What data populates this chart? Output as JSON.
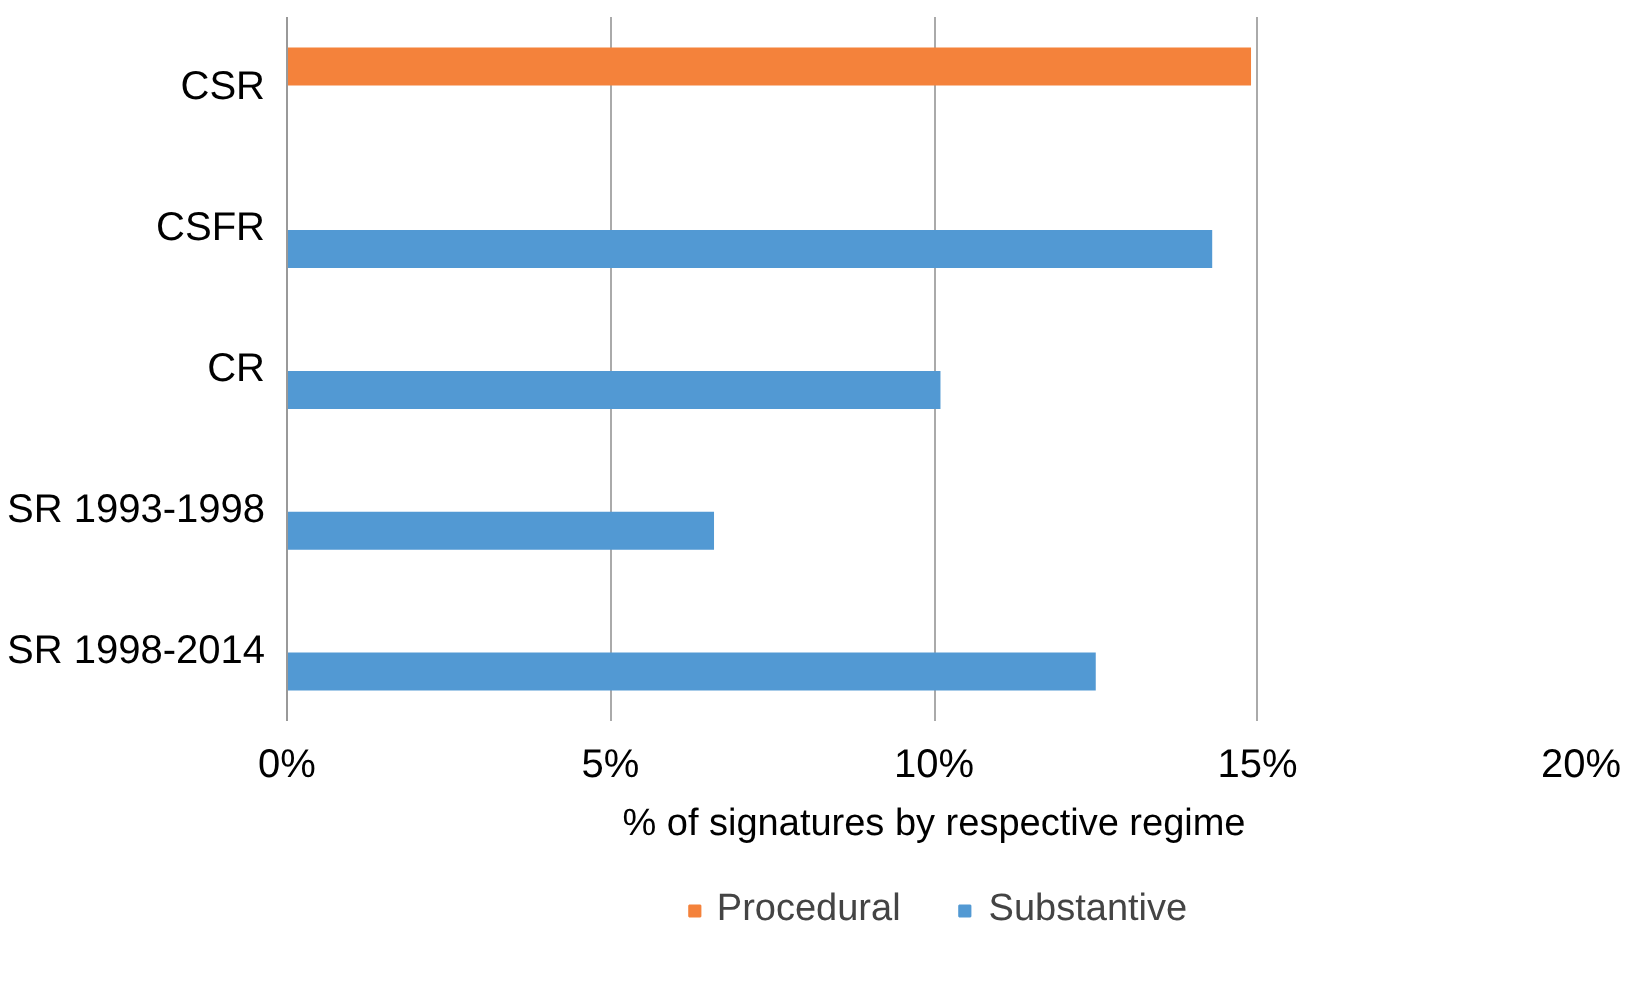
{
  "chart_data": {
    "type": "bar",
    "orientation": "horizontal",
    "xlabel": "% of signatures by respective regime",
    "categories": [
      "CSR",
      "CSFR",
      "CR",
      "SR 1993-1998",
      "SR 1998-2014"
    ],
    "series": [
      {
        "name": "Procedural",
        "color": "#f4823b",
        "values": [
          14.9,
          null,
          null,
          null,
          null
        ]
      },
      {
        "name": "Substantive",
        "color": "#5299d3",
        "values": [
          null,
          14.3,
          10.1,
          6.6,
          12.5
        ]
      }
    ],
    "xlim": [
      0,
      20
    ],
    "xticks": [
      {
        "value": 0,
        "label": "0%"
      },
      {
        "value": 5,
        "label": "5%"
      },
      {
        "value": 10,
        "label": "10%"
      },
      {
        "value": 15,
        "label": "15%"
      },
      {
        "value": 20,
        "label": "20%"
      }
    ],
    "grid": "x",
    "legend": "bottom"
  }
}
